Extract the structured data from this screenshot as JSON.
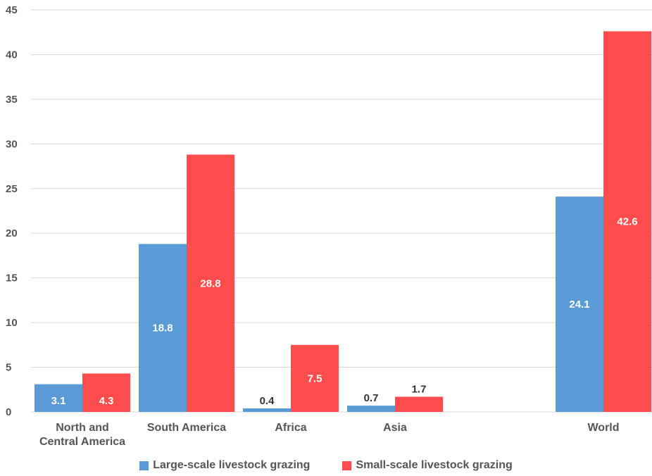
{
  "chart_data": {
    "type": "bar",
    "categories": [
      [
        "North and",
        "Central America"
      ],
      [
        "South America"
      ],
      [
        "Africa"
      ],
      [
        "Asia"
      ],
      [],
      [
        "World"
      ]
    ],
    "series": [
      {
        "name": "Large-scale livestock grazing",
        "color": "#5B9BD5",
        "values": [
          3.1,
          18.8,
          0.4,
          0.7,
          null,
          24.1
        ],
        "labels": [
          "3.1",
          "18.8",
          "0.4",
          "0.7",
          "",
          "24.1"
        ]
      },
      {
        "name": "Small-scale livestock grazing",
        "color": "#FF4C4C",
        "values": [
          4.3,
          28.8,
          7.5,
          1.7,
          null,
          42.6
        ],
        "labels": [
          "4.3",
          "28.8",
          "7.5",
          "1.7",
          "",
          "42.6"
        ]
      }
    ],
    "yticks": [
      "0",
      "5",
      "10",
      "15",
      "20",
      "25",
      "30",
      "35",
      "40",
      "45"
    ],
    "ylim": [
      0,
      45
    ],
    "grid": true,
    "legend_position": "bottom"
  }
}
